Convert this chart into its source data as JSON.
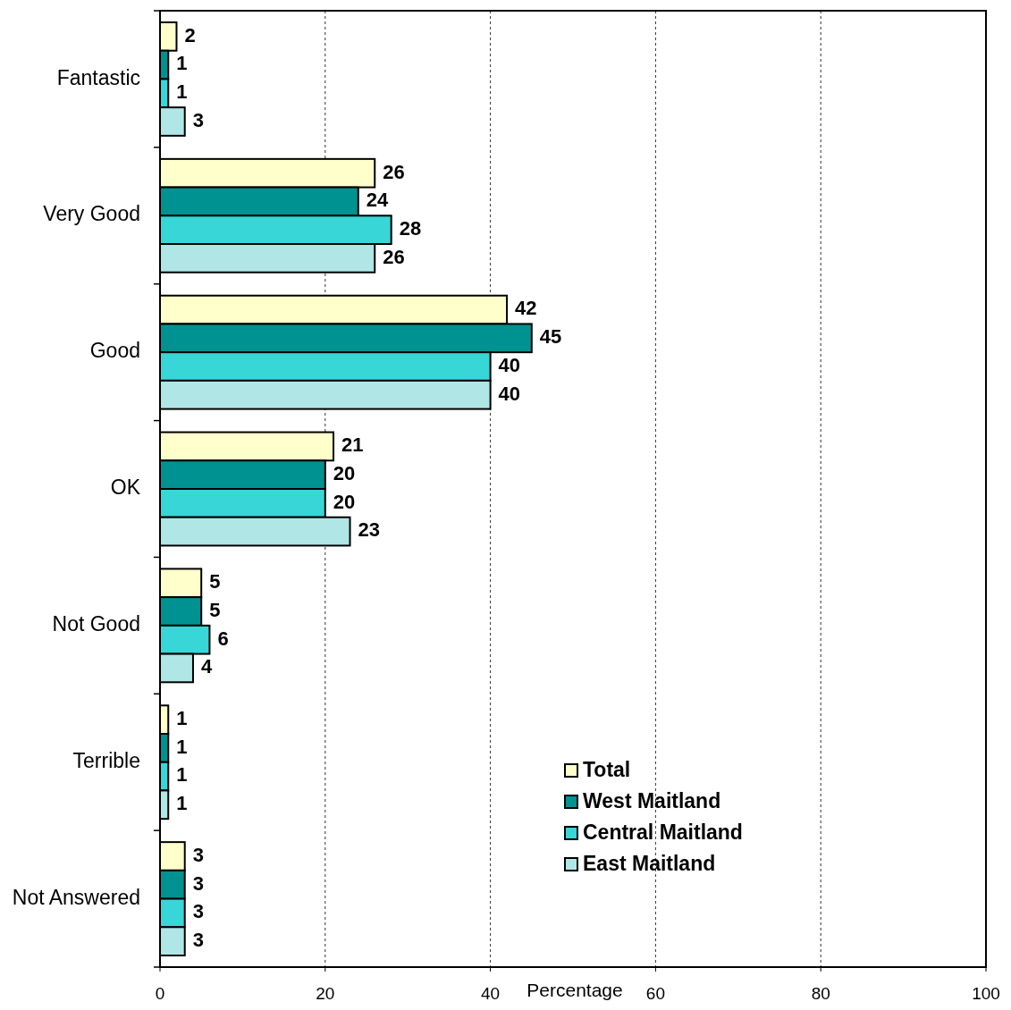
{
  "chart_data": {
    "type": "bar",
    "orientation": "horizontal",
    "xlabel": "Percentage",
    "categories": [
      "Fantastic",
      "Very Good",
      "Good",
      "OK",
      "Not Good",
      "Terrible",
      "Not Answered"
    ],
    "series": [
      {
        "name": "Total",
        "color": "#ffffcc",
        "values": [
          2,
          26,
          42,
          21,
          5,
          1,
          3
        ]
      },
      {
        "name": "West Maitland",
        "color": "#009191",
        "values": [
          1,
          24,
          45,
          20,
          5,
          1,
          3
        ]
      },
      {
        "name": "Central Maitland",
        "color": "#38d6d6",
        "values": [
          1,
          28,
          40,
          20,
          6,
          1,
          3
        ]
      },
      {
        "name": "East Maitland",
        "color": "#b0e6e6",
        "values": [
          3,
          26,
          40,
          23,
          4,
          1,
          3
        ]
      }
    ],
    "xlim": [
      0,
      100
    ],
    "xticks": [
      0,
      20,
      40,
      60,
      80,
      100
    ],
    "grid": "x",
    "legend": "bottom right",
    "data_labels": true
  }
}
